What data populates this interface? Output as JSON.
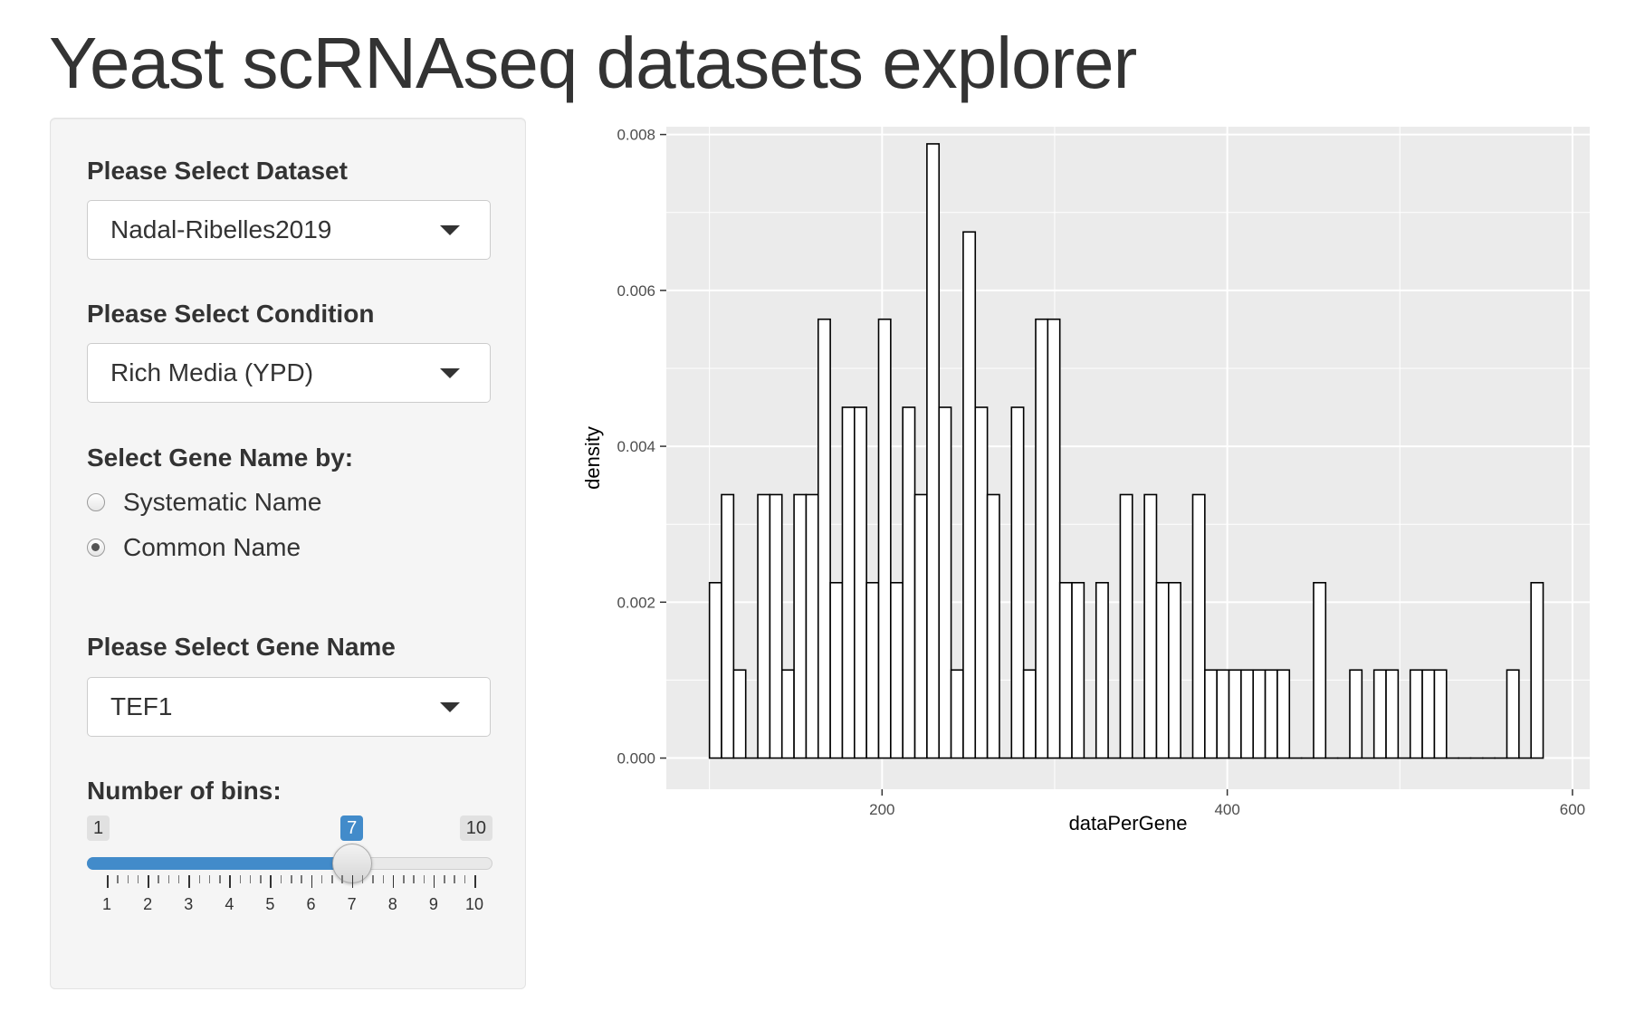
{
  "app": {
    "title": "Yeast scRNAseq datasets explorer"
  },
  "sidebar": {
    "dataset": {
      "label": "Please Select Dataset",
      "value": "Nadal-Ribelles2019"
    },
    "condition": {
      "label": "Please Select Condition",
      "value": "Rich Media (YPD)"
    },
    "gene_name_by": {
      "label": "Select Gene Name by:",
      "options": [
        {
          "label": "Systematic Name",
          "checked": false
        },
        {
          "label": "Common Name",
          "checked": true
        }
      ]
    },
    "gene": {
      "label": "Please Select Gene Name",
      "value": "TEF1"
    },
    "bins": {
      "label": "Number of bins:",
      "min": 1,
      "max": 10,
      "value": 7,
      "min_label": "1",
      "max_label": "10",
      "value_label": "7",
      "tick_labels": [
        "1",
        "2",
        "3",
        "4",
        "5",
        "6",
        "7",
        "8",
        "9",
        "10"
      ]
    }
  },
  "colors": {
    "accent": "#428bca",
    "panel": "#ebebeb",
    "bar_fill": "#ffffff",
    "bar_stroke": "#000000"
  },
  "chart_data": {
    "type": "bar",
    "xlabel": "dataPerGene",
    "ylabel": "density",
    "xlim": [
      75,
      610
    ],
    "ylim": [
      -0.0004,
      0.0081
    ],
    "xticks": [
      200,
      400,
      600
    ],
    "yticks": [
      0.0,
      0.002,
      0.004,
      0.006,
      0.008
    ],
    "xtick_labels": [
      "200",
      "400",
      "600"
    ],
    "ytick_labels": [
      "0.000",
      "0.002",
      "0.004",
      "0.006",
      "0.008"
    ],
    "x_start": 100,
    "bin_width": 7,
    "values": [
      0.00225,
      0.00338,
      0.00113,
      0,
      0.00338,
      0.00338,
      0.00113,
      0.00338,
      0.00338,
      0.00563,
      0.00225,
      0.0045,
      0.0045,
      0.00225,
      0.00563,
      0.00225,
      0.0045,
      0.00338,
      0.00788,
      0.0045,
      0.00113,
      0.00675,
      0.0045,
      0.00338,
      0,
      0.0045,
      0.00113,
      0.00563,
      0.00563,
      0.00225,
      0.00225,
      0,
      0.00225,
      0,
      0.00338,
      0,
      0.00338,
      0.00225,
      0.00225,
      0,
      0.00338,
      0.00113,
      0.00113,
      0.00113,
      0.00113,
      0.00113,
      0.00113,
      0.00113,
      0,
      0,
      0.00225,
      0,
      0,
      0.00113,
      0,
      0.00113,
      0.00113,
      0,
      0.00113,
      0.00113,
      0.00113,
      0,
      0,
      0,
      0,
      0,
      0.00113,
      0,
      0.00225
    ],
    "grid": true,
    "legend": "none"
  }
}
